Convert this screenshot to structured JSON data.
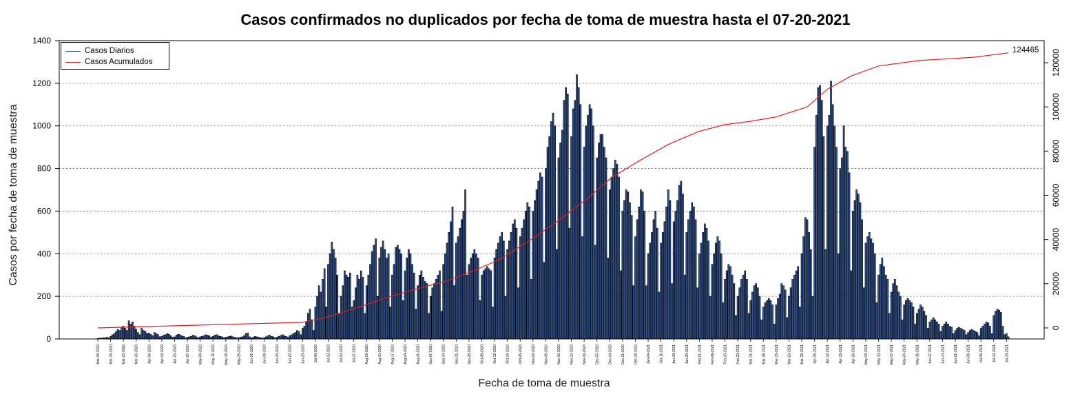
{
  "chart_data": {
    "type": "bar",
    "title": "Casos confirmados no duplicados por fecha de toma de muestra hasta el 07-20-2021",
    "xlabel": "Fecha de toma de muestra",
    "ylabel": "Casos por fecha de toma de muestra",
    "ylim": [
      0,
      1400
    ],
    "y_ticks": [
      0,
      200,
      400,
      600,
      800,
      1000,
      1200,
      1400
    ],
    "y2lim": [
      -5000,
      130000
    ],
    "y2_ticks": [
      0,
      20000,
      40000,
      60000,
      80000,
      100000,
      120000
    ],
    "grid": "horizontal dotted",
    "legend_position": "top-left",
    "x_date_range": [
      "2020-03-09",
      "2021-07-20"
    ],
    "x_ticks": [
      "Mar-09-2020",
      "Mar-16-2020",
      "Mar-23-2020",
      "Mar-30-2020",
      "Apr-06-2020",
      "Apr-13-2020",
      "Apr-20-2020",
      "Apr-27-2020",
      "May-04-2020",
      "May-11-2020",
      "May-18-2020",
      "May-25-2020",
      "Jun-01-2020",
      "Jun-08-2020",
      "Jun-15-2020",
      "Jun-22-2020",
      "Jun-29-2020",
      "Jul-06-2020",
      "Jul-13-2020",
      "Jul-20-2020",
      "Jul-27-2020",
      "Aug-03-2020",
      "Aug-10-2020",
      "Aug-17-2020",
      "Aug-24-2020",
      "Aug-31-2020",
      "Sep-07-2020",
      "Sep-14-2020",
      "Sep-21-2020",
      "Sep-28-2020",
      "Oct-05-2020",
      "Oct-12-2020",
      "Oct-19-2020",
      "Oct-26-2020",
      "Nov-02-2020",
      "Nov-09-2020",
      "Nov-16-2020",
      "Nov-23-2020",
      "Nov-30-2020",
      "Dec-07-2020",
      "Dec-14-2020",
      "Dec-21-2020",
      "Dec-28-2020",
      "Jan-04-2021",
      "Jan-11-2021",
      "Jan-18-2021",
      "Jan-25-2021",
      "Feb-01-2021",
      "Feb-08-2021",
      "Feb-15-2021",
      "Feb-22-2021",
      "Mar-01-2021",
      "Mar-08-2021",
      "Mar-15-2021",
      "Mar-22-2021",
      "Mar-29-2021",
      "Apr-05-2021",
      "Apr-12-2021",
      "Apr-19-2021",
      "Apr-26-2021",
      "May-03-2021",
      "May-10-2021",
      "May-17-2021",
      "May-24-2021",
      "May-31-2021",
      "Jun-07-2021",
      "Jun-14-2021",
      "Jun-21-2021",
      "Jun-28-2021",
      "Jul-05-2021",
      "Jul-12-2021",
      "Jul-19-2021"
    ],
    "series": [
      {
        "name": "Casos Diarios",
        "color": "#2a4f8f",
        "weekly_daily_values": [
          [
            2,
            4,
            3,
            6,
            5,
            8,
            5
          ],
          [
            12,
            20,
            25,
            35,
            45,
            40,
            55
          ],
          [
            60,
            50,
            40,
            85,
            70,
            80,
            60
          ],
          [
            45,
            30,
            20,
            50,
            40,
            35,
            25
          ],
          [
            28,
            22,
            15,
            30,
            25,
            20,
            10
          ],
          [
            12,
            18,
            20,
            25,
            22,
            15,
            8
          ],
          [
            10,
            18,
            22,
            20,
            15,
            12,
            5
          ],
          [
            8,
            10,
            12,
            18,
            15,
            10,
            5
          ],
          [
            10,
            12,
            15,
            20,
            18,
            14,
            8
          ],
          [
            12,
            18,
            20,
            15,
            12,
            10,
            6
          ],
          [
            8,
            10,
            12,
            14,
            10,
            8,
            5
          ],
          [
            6,
            8,
            10,
            15,
            25,
            28,
            10
          ],
          [
            5,
            8,
            12,
            10,
            8,
            6,
            4
          ],
          [
            6,
            10,
            15,
            18,
            12,
            10,
            5
          ],
          [
            8,
            12,
            16,
            20,
            15,
            12,
            8
          ],
          [
            15,
            20,
            25,
            30,
            40,
            35,
            20
          ],
          [
            50,
            60,
            80,
            120,
            140,
            90,
            40
          ],
          [
            150,
            200,
            250,
            220,
            280,
            330,
            150
          ],
          [
            350,
            400,
            455,
            420,
            380,
            300,
            120
          ],
          [
            200,
            250,
            320,
            300,
            290,
            310,
            150
          ],
          [
            180,
            240,
            300,
            280,
            320,
            290,
            120
          ],
          [
            250,
            300,
            350,
            410,
            440,
            470,
            200
          ],
          [
            380,
            430,
            460,
            420,
            380,
            400,
            150
          ],
          [
            300,
            350,
            430,
            440,
            420,
            400,
            180
          ],
          [
            320,
            380,
            420,
            400,
            350,
            310,
            140
          ],
          [
            250,
            300,
            320,
            290,
            270,
            260,
            120
          ],
          [
            200,
            240,
            260,
            280,
            300,
            320,
            130
          ],
          [
            350,
            400,
            450,
            500,
            550,
            620,
            250
          ],
          [
            450,
            480,
            520,
            560,
            600,
            700,
            300
          ],
          [
            350,
            380,
            400,
            420,
            400,
            380,
            180
          ],
          [
            300,
            320,
            330,
            340,
            330,
            320,
            150
          ],
          [
            380,
            420,
            450,
            480,
            500,
            460,
            200
          ],
          [
            420,
            460,
            500,
            540,
            560,
            520,
            240
          ],
          [
            480,
            520,
            560,
            600,
            640,
            620,
            280
          ],
          [
            600,
            650,
            700,
            740,
            780,
            760,
            360
          ],
          [
            800,
            900,
            950,
            1020,
            1060,
            1000,
            420
          ],
          [
            850,
            920,
            980,
            1120,
            1180,
            1150,
            520
          ],
          [
            950,
            1080,
            1120,
            1240,
            1180,
            1100,
            480
          ],
          [
            900,
            1000,
            1050,
            1100,
            1080,
            1000,
            440
          ],
          [
            850,
            920,
            960,
            960,
            900,
            850,
            380
          ],
          [
            700,
            760,
            800,
            840,
            820,
            760,
            320
          ],
          [
            600,
            650,
            700,
            690,
            640,
            580,
            250
          ],
          [
            480,
            560,
            620,
            700,
            690,
            600,
            250
          ],
          [
            400,
            450,
            500,
            560,
            600,
            520,
            220
          ],
          [
            450,
            500,
            550,
            620,
            700,
            650,
            260
          ],
          [
            550,
            600,
            650,
            720,
            740,
            680,
            300
          ],
          [
            500,
            560,
            600,
            640,
            620,
            560,
            240
          ],
          [
            400,
            450,
            500,
            540,
            520,
            460,
            200
          ],
          [
            350,
            400,
            450,
            480,
            460,
            400,
            170
          ],
          [
            280,
            320,
            350,
            340,
            300,
            260,
            110
          ],
          [
            200,
            240,
            280,
            300,
            320,
            280,
            120
          ],
          [
            180,
            220,
            250,
            260,
            240,
            200,
            90
          ],
          [
            150,
            170,
            180,
            190,
            180,
            160,
            70
          ],
          [
            160,
            190,
            210,
            260,
            250,
            230,
            100
          ],
          [
            200,
            240,
            280,
            300,
            320,
            340,
            150
          ],
          [
            400,
            480,
            570,
            560,
            500,
            420,
            200
          ],
          [
            900,
            1050,
            1180,
            1190,
            1120,
            950,
            420
          ],
          [
            1000,
            1050,
            1210,
            1100,
            1000,
            900,
            400
          ],
          [
            800,
            850,
            1000,
            900,
            880,
            780,
            320
          ],
          [
            600,
            650,
            700,
            680,
            640,
            560,
            240
          ],
          [
            450,
            480,
            500,
            470,
            450,
            400,
            170
          ],
          [
            300,
            350,
            380,
            340,
            300,
            280,
            120
          ],
          [
            220,
            260,
            280,
            250,
            220,
            200,
            90
          ],
          [
            160,
            180,
            190,
            180,
            170,
            150,
            70
          ],
          [
            120,
            140,
            160,
            150,
            130,
            110,
            50
          ],
          [
            80,
            90,
            100,
            90,
            80,
            70,
            35
          ],
          [
            60,
            70,
            80,
            70,
            60,
            55,
            25
          ],
          [
            40,
            50,
            55,
            50,
            45,
            40,
            20
          ],
          [
            30,
            40,
            45,
            40,
            35,
            30,
            15
          ],
          [
            50,
            60,
            70,
            80,
            75,
            60,
            25
          ],
          [
            110,
            130,
            140,
            135,
            125,
            60,
            20
          ],
          [
            25,
            10
          ]
        ]
      },
      {
        "name": "Casos Acumulados",
        "color": "#e02020",
        "axis": "right",
        "points": [
          [
            "2020-03-09",
            0
          ],
          [
            "2020-05-01",
            1200
          ],
          [
            "2020-06-29",
            2500
          ],
          [
            "2020-07-13",
            5000
          ],
          [
            "2020-08-01",
            10000
          ],
          [
            "2020-08-15",
            14000
          ],
          [
            "2020-09-01",
            18000
          ],
          [
            "2020-09-15",
            21000
          ],
          [
            "2020-10-01",
            26000
          ],
          [
            "2020-10-15",
            31000
          ],
          [
            "2020-11-01",
            40000
          ],
          [
            "2020-11-15",
            48000
          ],
          [
            "2020-12-01",
            58000
          ],
          [
            "2020-12-15",
            68000
          ],
          [
            "2020-12-31",
            76000
          ],
          [
            "2021-01-15",
            83000
          ],
          [
            "2021-02-01",
            89000
          ],
          [
            "2021-02-15",
            92000
          ],
          [
            "2021-03-01",
            93500
          ],
          [
            "2021-03-15",
            95500
          ],
          [
            "2021-04-01",
            100000
          ],
          [
            "2021-04-12",
            108000
          ],
          [
            "2021-04-25",
            114000
          ],
          [
            "2021-05-10",
            118500
          ],
          [
            "2021-06-01",
            121000
          ],
          [
            "2021-07-01",
            122500
          ],
          [
            "2021-07-20",
            124465
          ]
        ]
      }
    ],
    "last_value_label": "124465"
  }
}
